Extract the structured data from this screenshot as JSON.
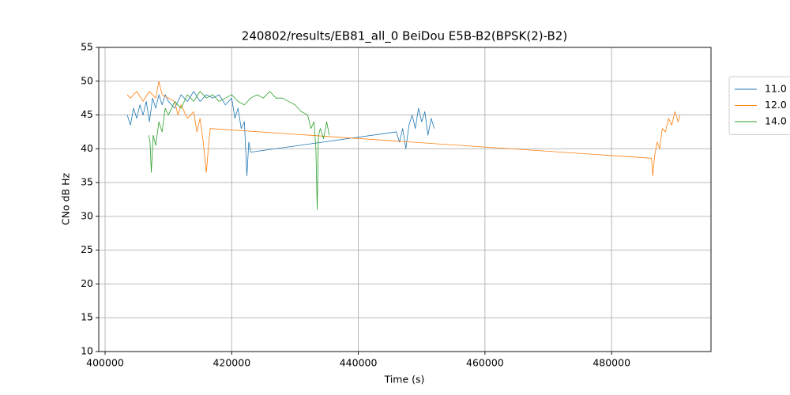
{
  "chart_data": {
    "type": "line",
    "title": "240802/results/EB81_all_0 BeiDou E5B-B2(BPSK(2)-B2)",
    "x_label": "Time (s)",
    "y_label": "CNo dB Hz",
    "xlim": [
      399000,
      495700
    ],
    "ylim": [
      10,
      55
    ],
    "xticks": [
      400000,
      420000,
      440000,
      460000,
      480000
    ],
    "yticks": [
      10,
      15,
      20,
      25,
      30,
      35,
      40,
      45,
      50,
      55
    ],
    "grid": true,
    "legend": "right",
    "series": [
      {
        "name": "11.0",
        "color": "#1f77b4",
        "x": [
          403500,
          404000,
          404500,
          405000,
          405500,
          406000,
          406500,
          407000,
          407500,
          408000,
          408500,
          409000,
          409500,
          410000,
          411000,
          412000,
          413000,
          414000,
          415000,
          416000,
          417000,
          418000,
          419000,
          420000,
          420500,
          421000,
          421500,
          422000,
          422400,
          422700,
          423000,
          446000,
          446500,
          447000,
          447500,
          448000,
          448500,
          449000,
          449500,
          450000,
          450500,
          451000,
          451500,
          452000
        ],
        "values": [
          45,
          43.5,
          46,
          44.5,
          46.5,
          45,
          47,
          44,
          47.5,
          46,
          48,
          46.5,
          48,
          47,
          46,
          48,
          47,
          48.5,
          47,
          48,
          47.5,
          48,
          46.5,
          47.5,
          44.5,
          46,
          43,
          44,
          36,
          41,
          39.5,
          42.5,
          41,
          43,
          40,
          43.5,
          45,
          43,
          46,
          44,
          45.5,
          42,
          44.5,
          43
        ]
      },
      {
        "name": "12.0",
        "color": "#ff7f0e",
        "x": [
          403500,
          404000,
          405000,
          406000,
          407000,
          408000,
          408500,
          409000,
          410000,
          411000,
          411500,
          412000,
          413000,
          414000,
          414500,
          415000,
          415500,
          416000,
          416300,
          416600,
          486300,
          486500,
          486800,
          487200,
          487600,
          488000,
          488500,
          489000,
          489500,
          490000,
          490500,
          490800
        ],
        "values": [
          48,
          47.5,
          48.5,
          47,
          48.5,
          47.5,
          50,
          48,
          47.5,
          47,
          45,
          46.5,
          44.5,
          45.5,
          42.5,
          44.5,
          41,
          36.5,
          40,
          43,
          38.6,
          36,
          39,
          41,
          40,
          43,
          42.5,
          44.5,
          43.5,
          45.5,
          44,
          45
        ]
      },
      {
        "name": "14.0",
        "color": "#2ca02c",
        "x": [
          406900,
          407100,
          407300,
          407600,
          408000,
          408500,
          409000,
          409500,
          410000,
          411000,
          412000,
          413000,
          414000,
          415000,
          416000,
          417000,
          418000,
          419000,
          420000,
          421000,
          422000,
          423000,
          424000,
          425000,
          426000,
          427000,
          428000,
          429000,
          430000,
          431000,
          432000,
          432500,
          433000,
          433300,
          433500,
          433700,
          434000,
          434500,
          435000,
          435400
        ],
        "values": [
          42,
          41,
          36.5,
          42,
          40.5,
          44,
          42.5,
          46,
          45,
          47,
          46,
          48,
          47,
          48.5,
          47.5,
          48,
          47,
          47.5,
          48,
          47,
          46.5,
          47.5,
          48,
          47.5,
          48.5,
          47.5,
          47.5,
          47,
          46.5,
          45.5,
          45,
          43,
          44,
          40,
          31,
          42,
          43,
          41.5,
          44,
          42
        ]
      }
    ]
  }
}
